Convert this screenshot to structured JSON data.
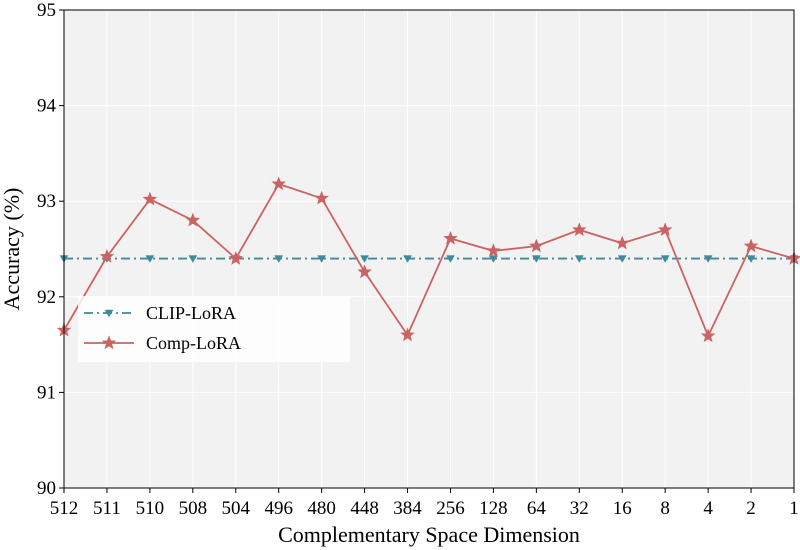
{
  "chart_data": {
    "type": "line",
    "title": "",
    "xlabel": "Complementary Space Dimension",
    "ylabel": "Accuracy (%)",
    "categories": [
      "512",
      "511",
      "510",
      "508",
      "504",
      "496",
      "480",
      "448",
      "384",
      "256",
      "128",
      "64",
      "32",
      "16",
      "8",
      "4",
      "2",
      "1"
    ],
    "ylim": [
      90,
      95
    ],
    "yticks": [
      90,
      91,
      92,
      93,
      94,
      95
    ],
    "grid": true,
    "legend_position": "middle-left",
    "series": [
      {
        "name": "CLIP-LoRA",
        "color": "#3f8a9e",
        "marker": "triangle-down",
        "line_style": "dash-dot",
        "values": [
          92.4,
          92.4,
          92.4,
          92.4,
          92.4,
          92.4,
          92.4,
          92.4,
          92.4,
          92.4,
          92.4,
          92.4,
          92.4,
          92.4,
          92.4,
          92.4,
          92.4,
          92.4
        ]
      },
      {
        "name": "Comp-LoRA",
        "color": "#c96462",
        "marker": "star",
        "line_style": "solid",
        "values": [
          91.65,
          92.42,
          93.02,
          92.8,
          92.4,
          93.18,
          93.03,
          92.26,
          91.6,
          92.61,
          92.48,
          92.53,
          92.7,
          92.56,
          92.7,
          91.59,
          92.53,
          92.4
        ]
      }
    ]
  }
}
